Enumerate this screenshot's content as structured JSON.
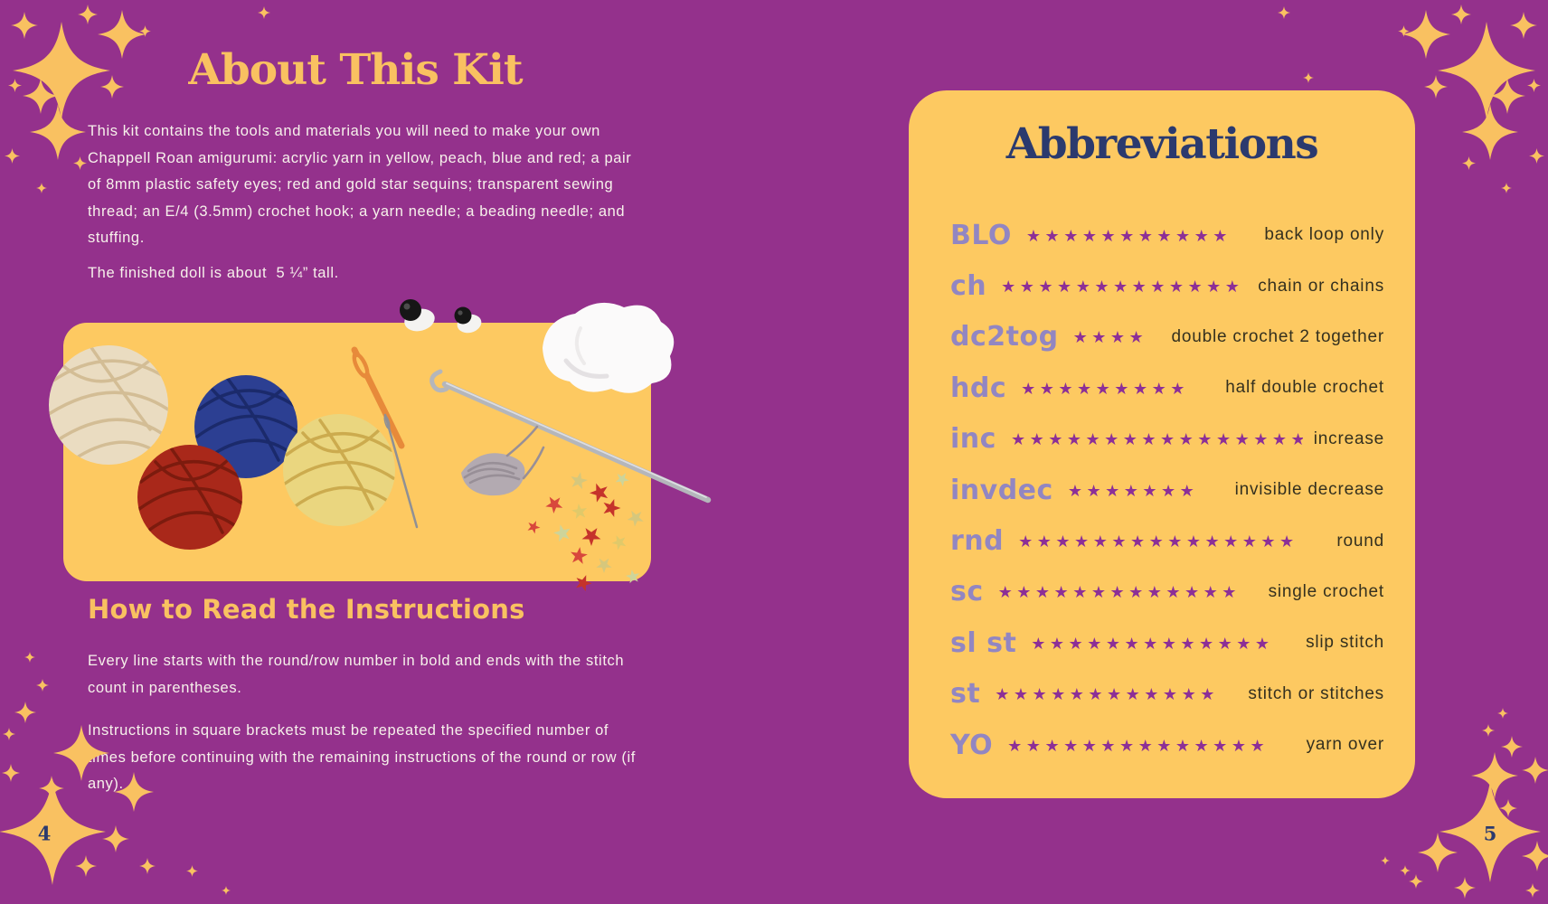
{
  "colors": {
    "background": "#94318c",
    "card_yellow": "#fdc961",
    "gold_accent": "#f9c161",
    "navy": "#2b3a6e",
    "lavender_term": "#9286c2",
    "star_purple": "#8c2f97",
    "definition_ink": "#34301f",
    "body_text": "#f7f1eb"
  },
  "left_page": {
    "title": "About This Kit",
    "intro": "This kit contains the tools and materials you will need to make your own Chappell Roan amigurumi: acrylic yarn in yellow, peach, blue and red; a pair of 8mm plastic safety eyes; red and gold star sequins; transparent sewing thread; an E/4 (3.5mm) crochet hook; a yarn needle; a beading needle; and stuffing.",
    "size_note": "The finished doll is about  5 ¼” tall.",
    "photo_items": [
      "cream yarn ball",
      "blue yarn ball",
      "red yarn ball",
      "yellow yarn ball",
      "plastic yarn needle",
      "beading needle",
      "crochet hook",
      "safety eyes",
      "stuffing",
      "sewing thread",
      "star sequins"
    ],
    "section_heading": "How to Read the Instructions",
    "reading_para1": "Every line starts with the round/row number in bold and ends with the stitch count in parentheses.",
    "reading_para2": "Instructions in square brackets must be repeated the specified number of times before continuing with the remaining instructions of the round or row (if any).",
    "page_number": "4"
  },
  "right_page": {
    "title": "Abbreviations",
    "star_glyph": "★",
    "rows": [
      {
        "term": "BLO",
        "stars": 11,
        "definition": "back loop only"
      },
      {
        "term": "ch",
        "stars": 13,
        "definition": "chain or chains"
      },
      {
        "term": "dc2tog",
        "stars": 4,
        "definition": "double crochet 2 together"
      },
      {
        "term": "hdc",
        "stars": 9,
        "definition": "half double crochet"
      },
      {
        "term": "inc",
        "stars": 16,
        "definition": "increase"
      },
      {
        "term": "invdec",
        "stars": 7,
        "definition": "invisible decrease"
      },
      {
        "term": "rnd",
        "stars": 15,
        "definition": "round"
      },
      {
        "term": "sc",
        "stars": 13,
        "definition": "single crochet"
      },
      {
        "term": "sl st",
        "stars": 13,
        "definition": "slip stitch"
      },
      {
        "term": "st",
        "stars": 12,
        "definition": "stitch or stitches"
      },
      {
        "term": "YO",
        "stars": 14,
        "definition": "yarn over"
      }
    ],
    "page_number": "5"
  }
}
